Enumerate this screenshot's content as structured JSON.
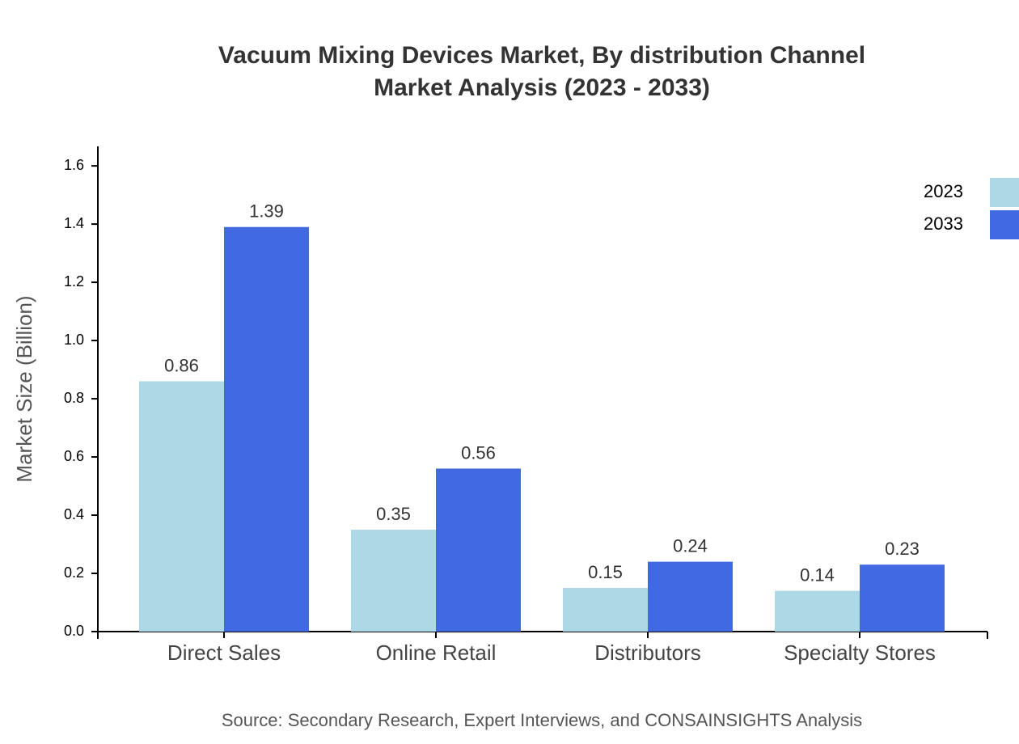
{
  "chart_data": {
    "type": "bar",
    "title": [
      "Vacuum Mixing Devices Market, By distribution Channel",
      "Market Analysis (2023 - 2033)"
    ],
    "y_label": "Market Size (Billion)",
    "source": "Source: Secondary Research, Expert Interviews, and CONSAINSIGHTS Analysis",
    "categories": [
      "Direct Sales",
      "Online Retail",
      "Distributors",
      "Specialty Stores"
    ],
    "series": [
      {
        "name": "2023",
        "color": "#add8e6",
        "values": [
          0.86,
          0.35,
          0.15,
          0.14
        ]
      },
      {
        "name": "2033",
        "color": "#4169e1",
        "values": [
          1.39,
          0.56,
          0.24,
          0.23
        ]
      }
    ],
    "ylim": [
      0,
      1.667
    ],
    "yticks": [
      {
        "value": 0,
        "label": "0.0"
      },
      0.2,
      0.4,
      0.6,
      0.8,
      {
        "value": 1,
        "label": "1.0"
      },
      1.2,
      1.4,
      1.6
    ],
    "legend": "top-right"
  }
}
